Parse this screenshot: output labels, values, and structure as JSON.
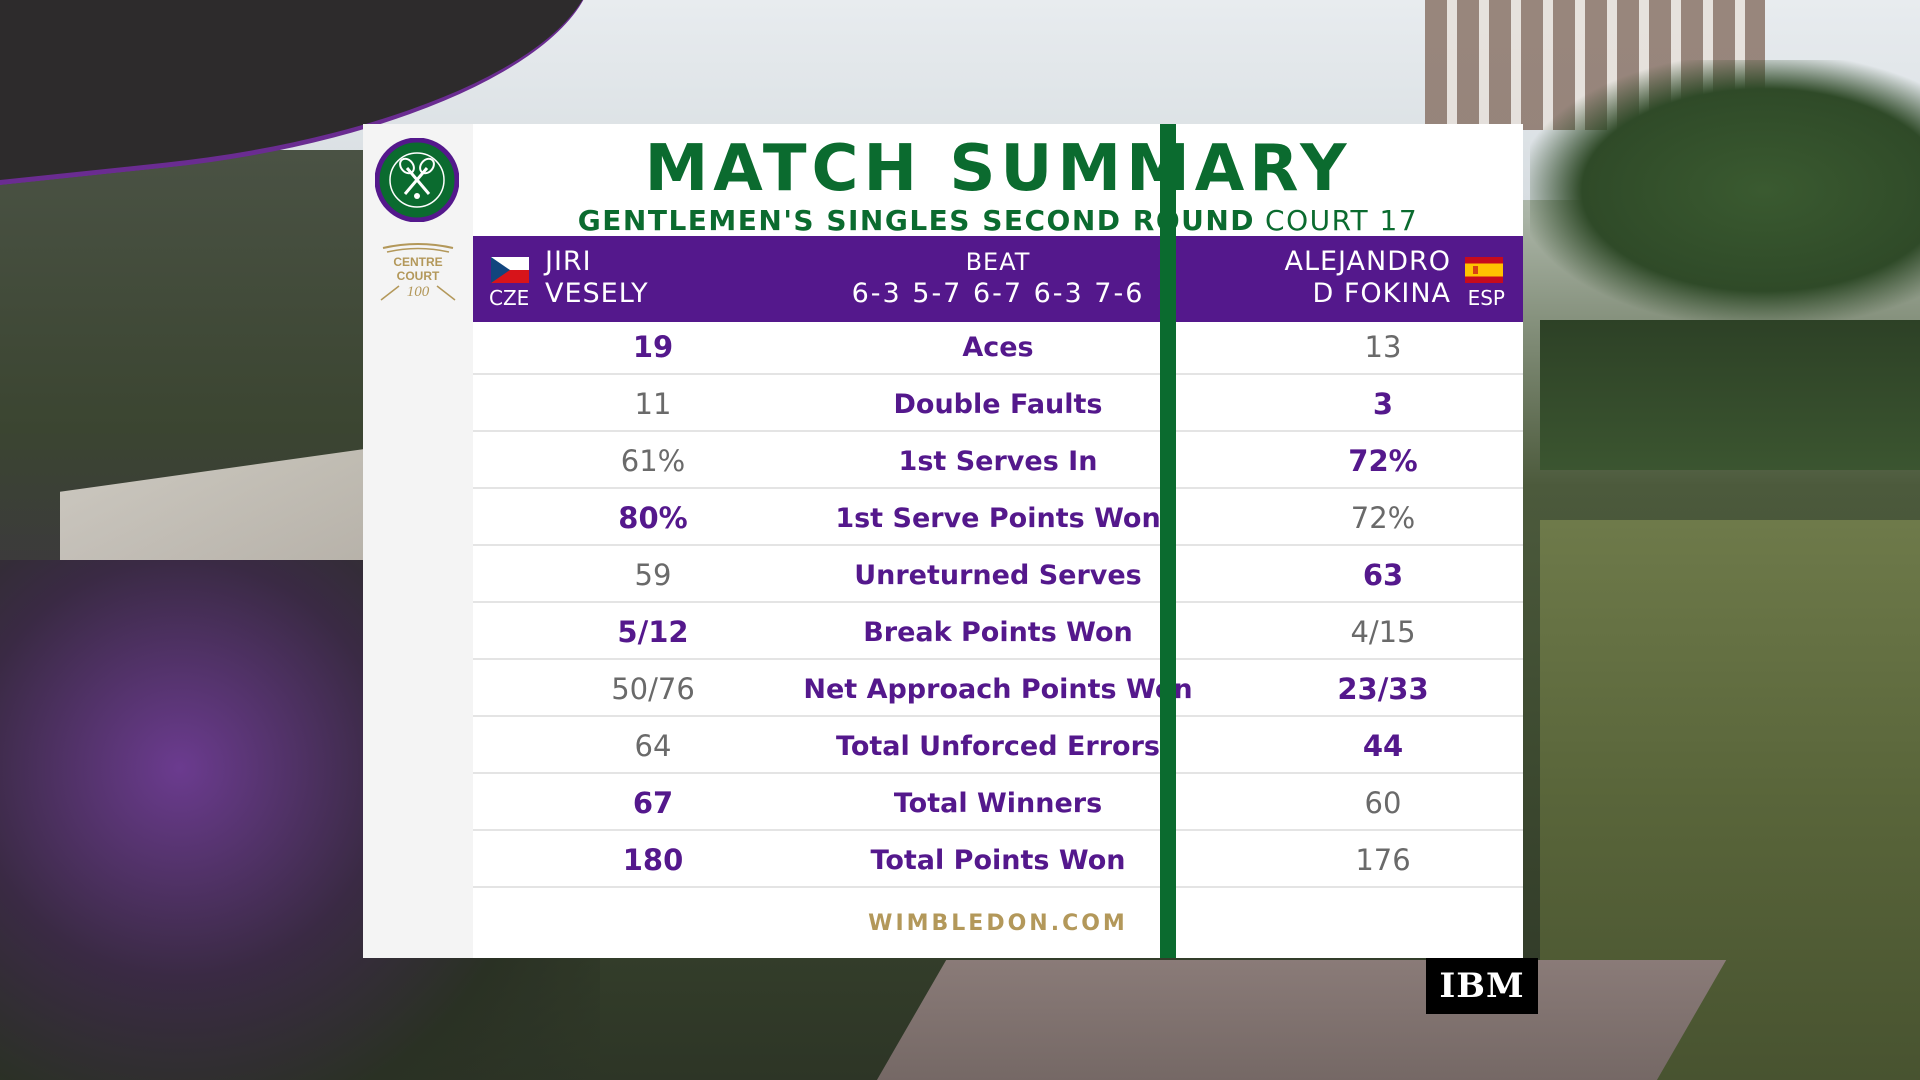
{
  "title": "MATCH SUMMARY",
  "subtitle": {
    "event": "GENTLEMEN'S SINGLES SECOND ROUND",
    "court": "COURT 17"
  },
  "logos": {
    "centre_court_line1": "CENTRE",
    "centre_court_line2": "COURT",
    "centre_court_line3": "100"
  },
  "players": {
    "left": {
      "first": "JIRI",
      "last": "VESELY",
      "country": "CZE"
    },
    "right": {
      "first": "ALEJANDRO",
      "last": "D FOKINA",
      "country": "ESP"
    }
  },
  "result": {
    "verb": "BEAT",
    "score": "6-3 5-7 6-7 6-3 7-6"
  },
  "stats": [
    {
      "label": "Aces",
      "left": "19",
      "right": "13",
      "leader": "left"
    },
    {
      "label": "Double Faults",
      "left": "11",
      "right": "3",
      "leader": "right"
    },
    {
      "label": "1st Serves In",
      "left": "61%",
      "right": "72%",
      "leader": "right"
    },
    {
      "label": "1st Serve Points Won",
      "left": "80%",
      "right": "72%",
      "leader": "left"
    },
    {
      "label": "Unreturned Serves",
      "left": "59",
      "right": "63",
      "leader": "right"
    },
    {
      "label": "Break Points Won",
      "left": "5/12",
      "right": "4/15",
      "leader": "left"
    },
    {
      "label": "Net Approach Points Won",
      "left": "50/76",
      "right": "23/33",
      "leader": "right"
    },
    {
      "label": "Total Unforced Errors",
      "left": "64",
      "right": "44",
      "leader": "right"
    },
    {
      "label": "Total Winners",
      "left": "67",
      "right": "60",
      "leader": "left"
    },
    {
      "label": "Total Points Won",
      "left": "180",
      "right": "176",
      "leader": "left"
    }
  ],
  "footer": "WIMBLEDON.COM",
  "sponsor": "IBM",
  "colors": {
    "green": "#0b6b2f",
    "purple": "#54188c",
    "gold": "#b3985a"
  }
}
